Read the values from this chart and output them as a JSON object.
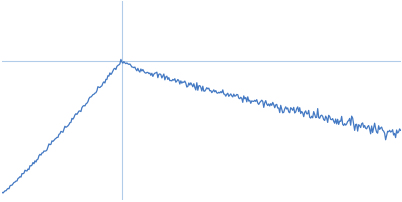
{
  "title": "",
  "bg_color": "#ffffff",
  "line_color": "#3a72c0",
  "grid_color": "#b0cce8",
  "figsize": [
    4.0,
    2.0
  ],
  "dpi": 100,
  "xlim": [
    0.0,
    1.0
  ],
  "ylim": [
    -0.8,
    1.0
  ],
  "grid_linewidth": 0.8,
  "vline_x": 0.3,
  "hline_y": 0.5
}
